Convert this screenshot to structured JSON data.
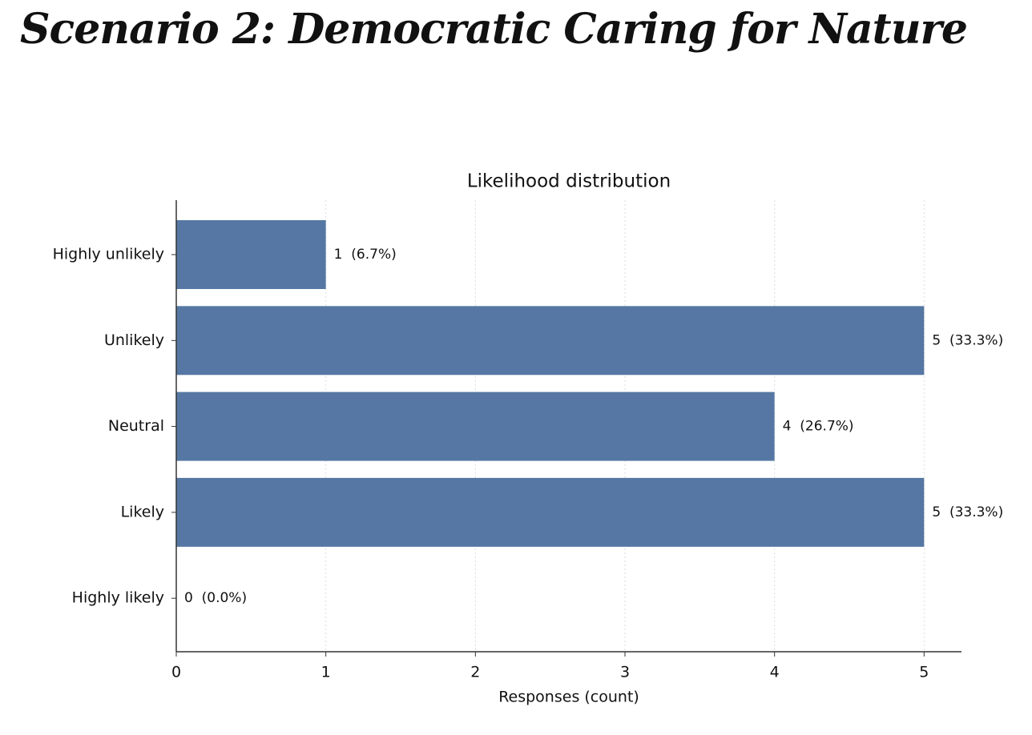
{
  "header": {
    "title": "Scenario 2: Democratic Caring for Nature"
  },
  "chart_data": {
    "type": "bar",
    "orientation": "horizontal",
    "title": "Likelihood distribution",
    "x_label": "Responses (count)",
    "categories": [
      "Highly unlikely",
      "Unlikely",
      "Neutral",
      "Likely",
      "Highly likely"
    ],
    "values": [
      1,
      5,
      4,
      5,
      0
    ],
    "value_labels": [
      "1  (6.7%)",
      "5  (33.3%)",
      "4  (26.7%)",
      "5  (33.3%)",
      "0  (0.0%)"
    ],
    "color": "#5677a3",
    "xlim": [
      0,
      5.25
    ],
    "xticks": [
      0,
      1,
      2,
      3,
      4,
      5
    ],
    "grid": true
  }
}
